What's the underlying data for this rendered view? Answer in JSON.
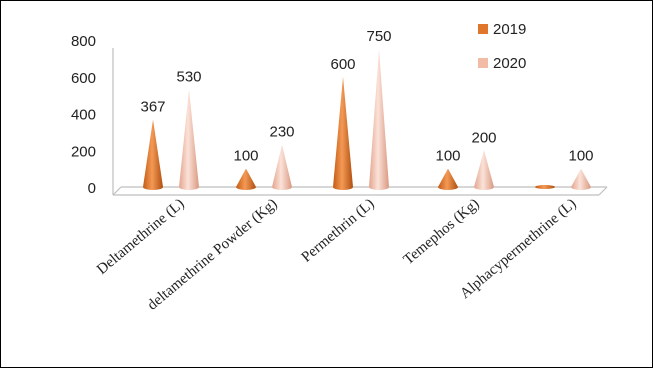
{
  "chart_data": {
    "type": "bar",
    "shape": "cone",
    "categories": [
      "Deltamethrine (L)",
      "deltamethrine Powder (Kg)",
      "Permethrin (L)",
      "Temephos (Kg)",
      "Alphacypermethrine (L)"
    ],
    "series": [
      {
        "name": "2019",
        "values": [
          367,
          100,
          600,
          100,
          0
        ],
        "labels": [
          "367",
          "100",
          "600",
          "100",
          ""
        ],
        "color": "#E0762C"
      },
      {
        "name": "2020",
        "values": [
          530,
          230,
          750,
          200,
          100
        ],
        "labels": [
          "530",
          "230",
          "750",
          "200",
          "100"
        ],
        "color": "#F2BBA6"
      }
    ],
    "ylim": [
      0,
      800
    ],
    "yticks": [
      "0",
      "200",
      "400",
      "600",
      "800"
    ],
    "legend_position": "top-right",
    "grid": false
  }
}
